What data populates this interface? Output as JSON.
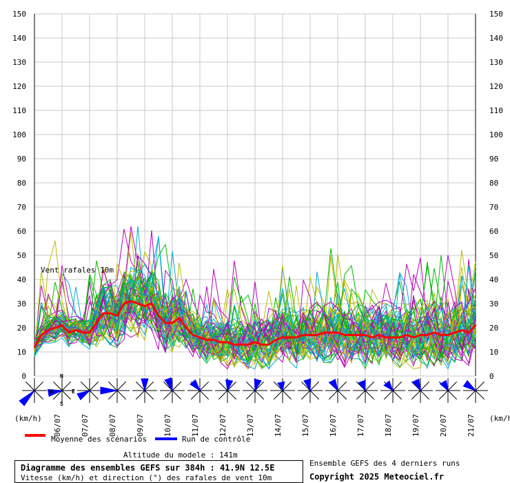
{
  "chart_data": {
    "type": "line",
    "title": "Diagramme des ensembles GEFS sur 384h : 41.9N 12.5E",
    "subtitle": "Vitesse (km/h) et direction (°) des rafales de vent 10m",
    "inner_label": "Vent rafales 10m",
    "ylabel_left": "(km/h)",
    "ylabel_right": "(km/h)",
    "ylim": [
      0,
      150
    ],
    "yticks": [
      0,
      10,
      20,
      30,
      40,
      50,
      60,
      70,
      80,
      90,
      100,
      110,
      120,
      130,
      140,
      150
    ],
    "x_dates": [
      "06/07",
      "07/07",
      "08/07",
      "09/07",
      "10/07",
      "11/07",
      "12/07",
      "13/07",
      "14/07",
      "15/07",
      "16/07",
      "17/07",
      "18/07",
      "19/07",
      "20/07",
      "21/07"
    ],
    "xlim_hours": [
      0,
      384
    ],
    "grid": true,
    "series": [
      {
        "name": "Moyenne des scénarios",
        "color": "#ff0000",
        "x_hours": [
          0,
          6,
          12,
          18,
          24,
          30,
          36,
          42,
          48,
          54,
          60,
          66,
          72,
          78,
          84,
          90,
          96,
          102,
          108,
          114,
          120,
          126,
          132,
          138,
          144,
          150,
          156,
          162,
          168,
          174,
          180,
          186,
          192,
          198,
          204,
          210,
          216,
          222,
          228,
          234,
          240,
          246,
          252,
          258,
          264,
          270,
          276,
          282,
          288,
          294,
          300,
          306,
          312,
          318,
          324,
          330,
          336,
          342,
          348,
          354,
          360,
          366,
          372,
          378,
          384
        ],
        "values": [
          12,
          17,
          19,
          20,
          21,
          18,
          19,
          18,
          18,
          22,
          26,
          26,
          25,
          30,
          31,
          30,
          29,
          30,
          25,
          22,
          22,
          24,
          20,
          17,
          16,
          15,
          15,
          14,
          14,
          13,
          13,
          13,
          14,
          13,
          13,
          15,
          16,
          16,
          16,
          17,
          17,
          17,
          18,
          18,
          18,
          17,
          17,
          17,
          17,
          16,
          17,
          16,
          16,
          16,
          17,
          16,
          17,
          17,
          18,
          17,
          17,
          18,
          19,
          18,
          21
        ]
      },
      {
        "name": "Run de contrôle",
        "color": "#0000ff"
      }
    ],
    "ensemble_color_names": [
      "green",
      "olive",
      "magenta",
      "cyan"
    ],
    "ensemble_colors": [
      "#00bb00",
      "#bbbb00",
      "#bb00bb",
      "#00aacc"
    ]
  },
  "wind_roses": {
    "count": 17,
    "color": "#0000ff",
    "compass_labels": {
      "n": "N",
      "w": "W",
      "e": "E",
      "s": "S"
    }
  },
  "footer": {
    "altitude": "Altitude du modele : 141m",
    "ensemble_note": "Ensemble GEFS des 4 derniers runs",
    "copyright": "Copyright 2025 Meteociel.fr"
  }
}
